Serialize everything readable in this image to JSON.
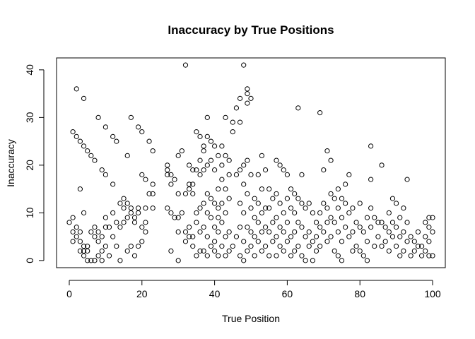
{
  "chart_data": {
    "type": "scatter",
    "title": "Inaccuracy by True Positions",
    "xlabel": "True Position",
    "ylabel": "Inaccuracy",
    "xlim": [
      -3.5,
      103.5
    ],
    "ylim": [
      -1.5,
      42.5
    ],
    "x_ticks": [
      0,
      20,
      40,
      60,
      80,
      100
    ],
    "y_ticks": [
      0,
      10,
      20,
      30,
      40
    ],
    "grid": false,
    "legend": "none",
    "marker": "open-circle",
    "point_color": "#000000",
    "points": [
      [
        0,
        8
      ],
      [
        1,
        27
      ],
      [
        1,
        9
      ],
      [
        1,
        6
      ],
      [
        1,
        4
      ],
      [
        2,
        26
      ],
      [
        2,
        36
      ],
      [
        2,
        7
      ],
      [
        2,
        5
      ],
      [
        3,
        25
      ],
      [
        3,
        15
      ],
      [
        3,
        6
      ],
      [
        3,
        4
      ],
      [
        3,
        2
      ],
      [
        4,
        24
      ],
      [
        4,
        34
      ],
      [
        4,
        10
      ],
      [
        4,
        3
      ],
      [
        4,
        2
      ],
      [
        4,
        1
      ],
      [
        5,
        23
      ],
      [
        5,
        3
      ],
      [
        5,
        2
      ],
      [
        5,
        0
      ],
      [
        6,
        22
      ],
      [
        6,
        6
      ],
      [
        6,
        0
      ],
      [
        7,
        21
      ],
      [
        7,
        7
      ],
      [
        7,
        5
      ],
      [
        7,
        0
      ],
      [
        8,
        30
      ],
      [
        8,
        6
      ],
      [
        8,
        4
      ],
      [
        8,
        1
      ],
      [
        9,
        19
      ],
      [
        9,
        5
      ],
      [
        9,
        2
      ],
      [
        9,
        0
      ],
      [
        10,
        28
      ],
      [
        10,
        18
      ],
      [
        10,
        9
      ],
      [
        10,
        7
      ],
      [
        10,
        3
      ],
      [
        11,
        7
      ],
      [
        11,
        1
      ],
      [
        12,
        16
      ],
      [
        12,
        26
      ],
      [
        12,
        10
      ],
      [
        12,
        5
      ],
      [
        13,
        25
      ],
      [
        13,
        8
      ],
      [
        13,
        3
      ],
      [
        14,
        12
      ],
      [
        14,
        7
      ],
      [
        14,
        0
      ],
      [
        15,
        11
      ],
      [
        15,
        8
      ],
      [
        15,
        13
      ],
      [
        16,
        22
      ],
      [
        16,
        12
      ],
      [
        16,
        2
      ],
      [
        16,
        9
      ],
      [
        17,
        30
      ],
      [
        17,
        11
      ],
      [
        17,
        10
      ],
      [
        17,
        3
      ],
      [
        18,
        9
      ],
      [
        18,
        8
      ],
      [
        18,
        1
      ],
      [
        19,
        28
      ],
      [
        19,
        11
      ],
      [
        19,
        10
      ],
      [
        19,
        3
      ],
      [
        20,
        27
      ],
      [
        20,
        18
      ],
      [
        20,
        7
      ],
      [
        20,
        4
      ],
      [
        21,
        17
      ],
      [
        21,
        6
      ],
      [
        21,
        8
      ],
      [
        21,
        11
      ],
      [
        22,
        25
      ],
      [
        22,
        14
      ],
      [
        23,
        16
      ],
      [
        23,
        14
      ],
      [
        23,
        11
      ],
      [
        23,
        23
      ],
      [
        27,
        11
      ],
      [
        27,
        18
      ],
      [
        27,
        20
      ],
      [
        27,
        19
      ],
      [
        28,
        16
      ],
      [
        28,
        18
      ],
      [
        28,
        10
      ],
      [
        28,
        2
      ],
      [
        29,
        17
      ],
      [
        29,
        9
      ],
      [
        30,
        22
      ],
      [
        30,
        14
      ],
      [
        30,
        9
      ],
      [
        30,
        6
      ],
      [
        30,
        0
      ],
      [
        31,
        23
      ],
      [
        31,
        10
      ],
      [
        32,
        41
      ],
      [
        32,
        14
      ],
      [
        32,
        6
      ],
      [
        32,
        4
      ],
      [
        33,
        20
      ],
      [
        33,
        16
      ],
      [
        33,
        15
      ],
      [
        33,
        7
      ],
      [
        33,
        5
      ],
      [
        34,
        16
      ],
      [
        34,
        19
      ],
      [
        34,
        14
      ],
      [
        34,
        5
      ],
      [
        34,
        3
      ],
      [
        35,
        27
      ],
      [
        35,
        19
      ],
      [
        35,
        10
      ],
      [
        35,
        8
      ],
      [
        35,
        1
      ],
      [
        36,
        26
      ],
      [
        36,
        18
      ],
      [
        36,
        21
      ],
      [
        36,
        11
      ],
      [
        36,
        6
      ],
      [
        36,
        2
      ],
      [
        37,
        23
      ],
      [
        37,
        24
      ],
      [
        37,
        19
      ],
      [
        37,
        12
      ],
      [
        37,
        7
      ],
      [
        37,
        2
      ],
      [
        38,
        30
      ],
      [
        38,
        26
      ],
      [
        38,
        20
      ],
      [
        38,
        14
      ],
      [
        38,
        10
      ],
      [
        38,
        5
      ],
      [
        38,
        1
      ],
      [
        39,
        25
      ],
      [
        39,
        21
      ],
      [
        39,
        13
      ],
      [
        39,
        9
      ],
      [
        39,
        3
      ],
      [
        40,
        24
      ],
      [
        40,
        19
      ],
      [
        40,
        12
      ],
      [
        40,
        7
      ],
      [
        40,
        4
      ],
      [
        40,
        2
      ],
      [
        41,
        22
      ],
      [
        41,
        15
      ],
      [
        41,
        11
      ],
      [
        41,
        9
      ],
      [
        41,
        6
      ],
      [
        41,
        1
      ],
      [
        42,
        24
      ],
      [
        42,
        20
      ],
      [
        42,
        17
      ],
      [
        42,
        12
      ],
      [
        42,
        8
      ],
      [
        42,
        3
      ],
      [
        43,
        30
      ],
      [
        43,
        22
      ],
      [
        43,
        15
      ],
      [
        43,
        10
      ],
      [
        43,
        5
      ],
      [
        43,
        1
      ],
      [
        44,
        21
      ],
      [
        44,
        18
      ],
      [
        44,
        13
      ],
      [
        44,
        6
      ],
      [
        44,
        2
      ],
      [
        45,
        29
      ],
      [
        45,
        27
      ],
      [
        45,
        3
      ],
      [
        46,
        32
      ],
      [
        46,
        18
      ],
      [
        46,
        5
      ],
      [
        47,
        34
      ],
      [
        47,
        29
      ],
      [
        47,
        19
      ],
      [
        47,
        12
      ],
      [
        47,
        7
      ],
      [
        47,
        1
      ],
      [
        48,
        41
      ],
      [
        48,
        20
      ],
      [
        48,
        16
      ],
      [
        48,
        10
      ],
      [
        48,
        4
      ],
      [
        48,
        0
      ],
      [
        49,
        36
      ],
      [
        49,
        35
      ],
      [
        49,
        33
      ],
      [
        49,
        21
      ],
      [
        49,
        14
      ],
      [
        49,
        7
      ],
      [
        49,
        2
      ],
      [
        50,
        34
      ],
      [
        50,
        18
      ],
      [
        50,
        11
      ],
      [
        50,
        6
      ],
      [
        50,
        3
      ],
      [
        51,
        13
      ],
      [
        51,
        9
      ],
      [
        51,
        5
      ],
      [
        51,
        1
      ],
      [
        52,
        18
      ],
      [
        52,
        12
      ],
      [
        52,
        8
      ],
      [
        52,
        4
      ],
      [
        53,
        22
      ],
      [
        53,
        15
      ],
      [
        53,
        10
      ],
      [
        53,
        6
      ],
      [
        53,
        2
      ],
      [
        54,
        19
      ],
      [
        54,
        11
      ],
      [
        54,
        7
      ],
      [
        54,
        3
      ],
      [
        55,
        15
      ],
      [
        55,
        11
      ],
      [
        55,
        6
      ],
      [
        55,
        1
      ],
      [
        56,
        13
      ],
      [
        56,
        8
      ],
      [
        56,
        4
      ],
      [
        57,
        21
      ],
      [
        57,
        14
      ],
      [
        57,
        9
      ],
      [
        57,
        5
      ],
      [
        57,
        1
      ],
      [
        58,
        20
      ],
      [
        58,
        12
      ],
      [
        58,
        7
      ],
      [
        58,
        3
      ],
      [
        59,
        19
      ],
      [
        59,
        10
      ],
      [
        59,
        6
      ],
      [
        59,
        2
      ],
      [
        60,
        18
      ],
      [
        60,
        13
      ],
      [
        60,
        8
      ],
      [
        60,
        4
      ],
      [
        61,
        15
      ],
      [
        61,
        11
      ],
      [
        61,
        5
      ],
      [
        61,
        1
      ],
      [
        62,
        14
      ],
      [
        62,
        10
      ],
      [
        62,
        6
      ],
      [
        62,
        2
      ],
      [
        63,
        32
      ],
      [
        63,
        13
      ],
      [
        63,
        8
      ],
      [
        63,
        3
      ],
      [
        64,
        18
      ],
      [
        64,
        12
      ],
      [
        64,
        7
      ],
      [
        64,
        1
      ],
      [
        65,
        11
      ],
      [
        65,
        5
      ],
      [
        65,
        0
      ],
      [
        66,
        12
      ],
      [
        66,
        6
      ],
      [
        66,
        3
      ],
      [
        67,
        10
      ],
      [
        67,
        4
      ],
      [
        67,
        0
      ],
      [
        68,
        8
      ],
      [
        68,
        5
      ],
      [
        68,
        2
      ],
      [
        69,
        31
      ],
      [
        69,
        10
      ],
      [
        69,
        7
      ],
      [
        69,
        3
      ],
      [
        70,
        19
      ],
      [
        70,
        12
      ],
      [
        70,
        6
      ],
      [
        71,
        23
      ],
      [
        71,
        11
      ],
      [
        71,
        8
      ],
      [
        71,
        4
      ],
      [
        72,
        21
      ],
      [
        72,
        14
      ],
      [
        72,
        9
      ],
      [
        72,
        5
      ],
      [
        73,
        13
      ],
      [
        73,
        8
      ],
      [
        73,
        2
      ],
      [
        74,
        15
      ],
      [
        74,
        11
      ],
      [
        74,
        6
      ],
      [
        74,
        1
      ],
      [
        75,
        13
      ],
      [
        75,
        9
      ],
      [
        75,
        4
      ],
      [
        75,
        0
      ],
      [
        76,
        16
      ],
      [
        76,
        12
      ],
      [
        76,
        7
      ],
      [
        77,
        18
      ],
      [
        77,
        10
      ],
      [
        77,
        5
      ],
      [
        78,
        11
      ],
      [
        78,
        6
      ],
      [
        78,
        2
      ],
      [
        79,
        8
      ],
      [
        79,
        3
      ],
      [
        80,
        12
      ],
      [
        80,
        7
      ],
      [
        80,
        2
      ],
      [
        81,
        6
      ],
      [
        81,
        1
      ],
      [
        82,
        9
      ],
      [
        82,
        4
      ],
      [
        82,
        0
      ],
      [
        83,
        24
      ],
      [
        83,
        17
      ],
      [
        83,
        11
      ],
      [
        83,
        7
      ],
      [
        84,
        9
      ],
      [
        84,
        3
      ],
      [
        85,
        8
      ],
      [
        85,
        5
      ],
      [
        86,
        20
      ],
      [
        86,
        8
      ],
      [
        86,
        3
      ],
      [
        87,
        7
      ],
      [
        87,
        4
      ],
      [
        88,
        10
      ],
      [
        88,
        6
      ],
      [
        88,
        2
      ],
      [
        89,
        13
      ],
      [
        89,
        8
      ],
      [
        89,
        5
      ],
      [
        90,
        12
      ],
      [
        90,
        7
      ],
      [
        90,
        3
      ],
      [
        91,
        9
      ],
      [
        91,
        5
      ],
      [
        91,
        1
      ],
      [
        92,
        11
      ],
      [
        92,
        6
      ],
      [
        92,
        2
      ],
      [
        93,
        17
      ],
      [
        93,
        8
      ],
      [
        93,
        4
      ],
      [
        94,
        5
      ],
      [
        94,
        1
      ],
      [
        95,
        4
      ],
      [
        95,
        2
      ],
      [
        96,
        6
      ],
      [
        96,
        3
      ],
      [
        97,
        3
      ],
      [
        97,
        1
      ],
      [
        98,
        8
      ],
      [
        98,
        5
      ],
      [
        98,
        2
      ],
      [
        99,
        9
      ],
      [
        99,
        7
      ],
      [
        99,
        4
      ],
      [
        99,
        1
      ],
      [
        100,
        9
      ],
      [
        100,
        6
      ],
      [
        100,
        1
      ]
    ]
  }
}
